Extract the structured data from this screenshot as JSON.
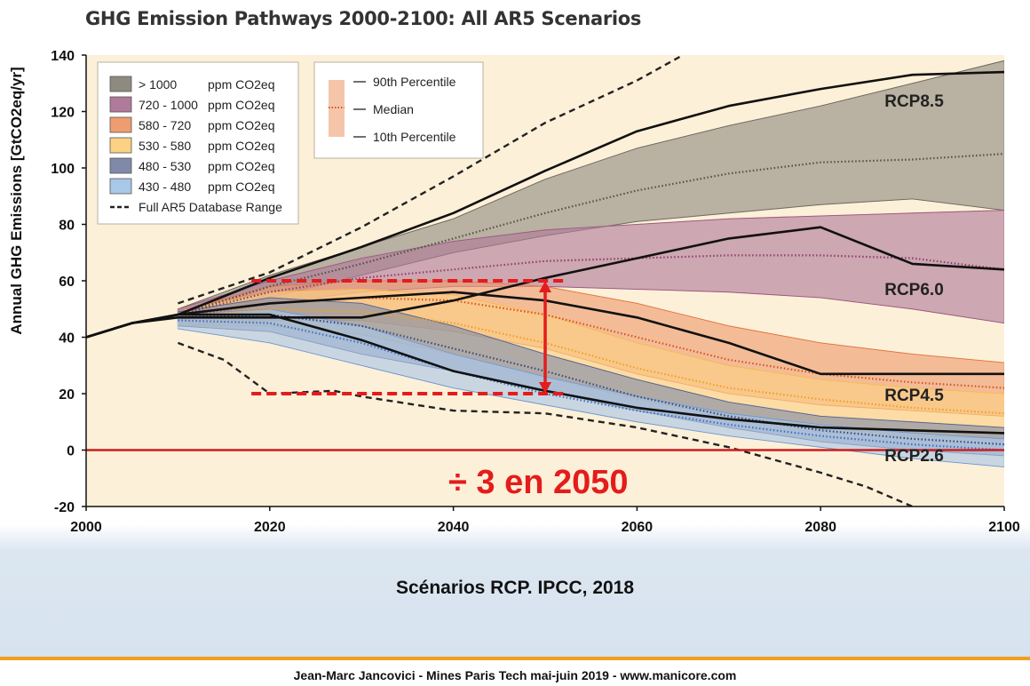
{
  "chart_data": {
    "type": "area",
    "title": "GHG Emission Pathways 2000-2100: All AR5 Scenarios",
    "xlabel": "",
    "ylabel": "Annual GHG Emissions [GtCO2eq/yr]",
    "xlim": [
      2000,
      2100
    ],
    "ylim": [
      -20,
      140
    ],
    "x_ticks": [
      2000,
      2020,
      2040,
      2060,
      2080,
      2100
    ],
    "y_ticks": [
      -20,
      0,
      20,
      40,
      60,
      80,
      100,
      120,
      140
    ],
    "grid": false,
    "legend_placement": "top-left",
    "legend": [
      {
        "range": "> 1000",
        "unit": "ppm CO2eq",
        "color": "#8f8a80"
      },
      {
        "range": "720 - 1000",
        "unit": "ppm CO2eq",
        "color": "#b07a9a"
      },
      {
        "range": "580 - 720",
        "unit": "ppm CO2eq",
        "color": "#ee9d70"
      },
      {
        "range": "530 - 580",
        "unit": "ppm CO2eq",
        "color": "#fbd184"
      },
      {
        "range": "480 - 530",
        "unit": "ppm CO2eq",
        "color": "#7f8aa8"
      },
      {
        "range": "430 - 480",
        "unit": "ppm CO2eq",
        "color": "#a9c7e7"
      },
      {
        "range": "Full AR5 Database Range",
        "unit": "",
        "color": "#222222",
        "style": "dashed"
      }
    ],
    "percentile_legend": [
      "90th Percentile",
      "Median",
      "10th Percentile"
    ],
    "history": {
      "x": [
        2000,
        2005,
        2010
      ],
      "y": [
        40,
        45,
        48
      ]
    },
    "series": [
      {
        "color": "#8f8a80",
        "median_color": "#555048",
        "x": [
          2010,
          2020,
          2030,
          2040,
          2050,
          2060,
          2070,
          2080,
          2090,
          2100
        ],
        "upper": [
          50,
          62,
          72,
          82,
          96,
          107,
          115,
          122,
          130,
          138
        ],
        "median": [
          48,
          58,
          66,
          75,
          84,
          92,
          98,
          102,
          103,
          105
        ],
        "lower": [
          47,
          54,
          62,
          70,
          76,
          81,
          84,
          87,
          89,
          85
        ]
      },
      {
        "color": "#b07a9a",
        "median_color": "#8e3f6e",
        "x": [
          2010,
          2020,
          2030,
          2040,
          2050,
          2060,
          2070,
          2080,
          2090,
          2100
        ],
        "upper": [
          50,
          60,
          68,
          74,
          78,
          80,
          82,
          83,
          84,
          85
        ],
        "median": [
          48,
          56,
          61,
          64,
          67,
          68,
          69,
          69,
          68,
          64
        ],
        "lower": [
          46,
          52,
          56,
          58,
          58,
          57,
          56,
          54,
          50,
          45
        ]
      },
      {
        "color": "#ee9d70",
        "median_color": "#d9531e",
        "x": [
          2010,
          2020,
          2030,
          2040,
          2050,
          2060,
          2070,
          2080,
          2090,
          2100
        ],
        "upper": [
          49,
          58,
          60,
          60,
          58,
          52,
          44,
          38,
          34,
          31
        ],
        "median": [
          47,
          52,
          54,
          53,
          48,
          40,
          32,
          27,
          24,
          22
        ],
        "lower": [
          44,
          46,
          46,
          42,
          36,
          27,
          20,
          16,
          14,
          12
        ]
      },
      {
        "color": "#fbd184",
        "median_color": "#f0a020",
        "x": [
          2010,
          2020,
          2030,
          2040,
          2050,
          2060,
          2070,
          2080,
          2090,
          2100
        ],
        "upper": [
          49,
          56,
          57,
          55,
          48,
          38,
          30,
          25,
          22,
          20
        ],
        "median": [
          47,
          50,
          49,
          45,
          38,
          29,
          22,
          18,
          15,
          13
        ],
        "lower": [
          44,
          44,
          41,
          34,
          26,
          18,
          12,
          8,
          5,
          4
        ]
      },
      {
        "color": "#7f8aa8",
        "median_color": "#3a4a7a",
        "x": [
          2010,
          2020,
          2030,
          2040,
          2050,
          2060,
          2070,
          2080,
          2090,
          2100
        ],
        "upper": [
          49,
          54,
          52,
          44,
          34,
          25,
          17,
          12,
          10,
          8
        ],
        "median": [
          47,
          48,
          44,
          36,
          28,
          19,
          12,
          7,
          4,
          2
        ],
        "lower": [
          44,
          42,
          34,
          28,
          21,
          14,
          8,
          3,
          0,
          -2
        ]
      },
      {
        "color": "#a9c7e7",
        "median_color": "#3f6fc0",
        "x": [
          2010,
          2020,
          2030,
          2040,
          2050,
          2060,
          2070,
          2080,
          2090,
          2100
        ],
        "upper": [
          48,
          50,
          44,
          34,
          26,
          19,
          13,
          9,
          6,
          4
        ],
        "median": [
          46,
          45,
          38,
          28,
          20,
          14,
          9,
          5,
          2,
          0
        ],
        "lower": [
          43,
          38,
          30,
          22,
          16,
          10,
          5,
          1,
          -3,
          -6
        ]
      }
    ],
    "database_range": {
      "upper": {
        "x": [
          2010,
          2020,
          2030,
          2040,
          2050,
          2060,
          2065
        ],
        "y": [
          52,
          63,
          79,
          97,
          116,
          131,
          140
        ]
      },
      "lower": {
        "x": [
          2010,
          2015,
          2020,
          2027,
          2030,
          2040,
          2050,
          2060,
          2070,
          2080,
          2085,
          2090
        ],
        "y": [
          38,
          32,
          20,
          21,
          19,
          14,
          13,
          8,
          1,
          -8,
          -13,
          -20
        ]
      }
    },
    "rcp_pathways": [
      {
        "label": "RCP8.5",
        "x": [
          2000,
          2005,
          2010,
          2020,
          2030,
          2040,
          2050,
          2060,
          2070,
          2080,
          2090,
          2100
        ],
        "y": [
          40,
          45,
          48,
          61,
          72,
          84,
          99,
          113,
          122,
          128,
          133,
          134
        ]
      },
      {
        "label": "RCP6.0",
        "x": [
          2000,
          2005,
          2010,
          2020,
          2030,
          2040,
          2050,
          2060,
          2070,
          2080,
          2090,
          2100
        ],
        "y": [
          40,
          45,
          47,
          47,
          47,
          53,
          61,
          68,
          75,
          79,
          66,
          64
        ]
      },
      {
        "label": "RCP4.5",
        "x": [
          2000,
          2005,
          2010,
          2020,
          2030,
          2040,
          2050,
          2060,
          2070,
          2080,
          2090,
          2100
        ],
        "y": [
          40,
          45,
          48,
          52,
          54,
          56,
          53,
          47,
          38,
          27,
          27,
          27
        ]
      },
      {
        "label": "RCP2.6",
        "x": [
          2000,
          2005,
          2010,
          2020,
          2030,
          2040,
          2050,
          2060,
          2070,
          2080,
          2090,
          2100
        ],
        "y": [
          40,
          45,
          48,
          48,
          39,
          28,
          21,
          15,
          11,
          8,
          7,
          6
        ]
      }
    ],
    "zero_line_color": "#cc1f1f",
    "annotation": {
      "text": "÷ 3 en 2050",
      "color": "#e41c1c",
      "hlines": [
        {
          "y": 60,
          "x": [
            2018,
            2052
          ]
        },
        {
          "y": 20,
          "x": [
            2018,
            2052
          ]
        }
      ],
      "arrow": {
        "x": 2050,
        "y": [
          60,
          20
        ]
      }
    }
  },
  "caption": "Scénarios RCP. IPCC, 2018",
  "footer": "Jean-Marc Jancovici - Mines Paris Tech mai-juin 2019 - www.manicore.com",
  "footer_accent_color": "#f0a020"
}
